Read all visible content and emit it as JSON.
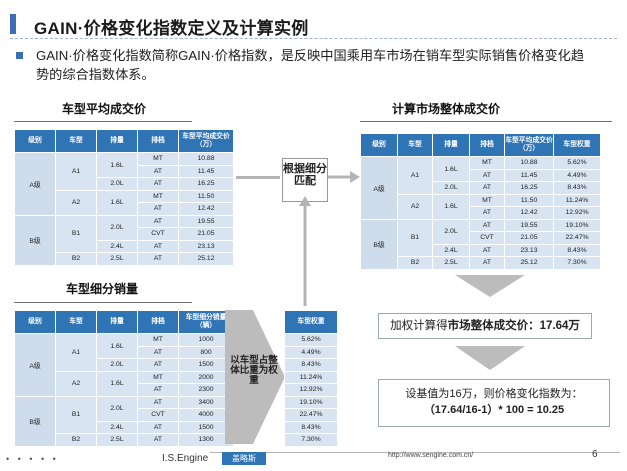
{
  "title": "GAIN·价格变化指数定义及计算实例",
  "intro": "GAIN·价格变化指数简称GAIN·价格指数，是反映中国乘用车市场在销车型实际销售价格变化趋势的综合指数体系。",
  "left_top": {
    "heading": "车型平均成交价",
    "headers": [
      "级别",
      "车型",
      "排量",
      "排档",
      "车型平均成交价（万）"
    ],
    "rows": [
      [
        "A级",
        "A1",
        "1.6L",
        "MT",
        "10.88"
      ],
      [
        "",
        "",
        "",
        "AT",
        "11.45"
      ],
      [
        "",
        "",
        "2.0L",
        "AT",
        "16.25"
      ],
      [
        "",
        "A2",
        "1.6L",
        "MT",
        "11.50"
      ],
      [
        "",
        "",
        "",
        "AT",
        "12.42"
      ],
      [
        "B级",
        "B1",
        "2.0L",
        "AT",
        "19.55"
      ],
      [
        "",
        "",
        "",
        "CVT",
        "21.05"
      ],
      [
        "",
        "",
        "2.4L",
        "AT",
        "23.13"
      ],
      [
        "",
        "B2",
        "2.5L",
        "AT",
        "25.12"
      ]
    ]
  },
  "left_bottom": {
    "heading": "车型细分销量",
    "headers": [
      "级别",
      "车型",
      "排量",
      "排档",
      "车型细分销量（辆）"
    ],
    "rows": [
      [
        "A级",
        "A1",
        "1.6L",
        "MT",
        "1000"
      ],
      [
        "",
        "",
        "",
        "AT",
        "800"
      ],
      [
        "",
        "",
        "2.0L",
        "AT",
        "1500"
      ],
      [
        "",
        "A2",
        "1.6L",
        "MT",
        "2000"
      ],
      [
        "",
        "",
        "",
        "AT",
        "2300"
      ],
      [
        "B级",
        "B1",
        "2.0L",
        "AT",
        "3400"
      ],
      [
        "",
        "",
        "",
        "CVT",
        "4000"
      ],
      [
        "",
        "",
        "2.4L",
        "AT",
        "1500"
      ],
      [
        "",
        "B2",
        "2.5L",
        "AT",
        "1300"
      ]
    ],
    "weight_header": "车型权重",
    "weights": [
      "5.62%",
      "4.49%",
      "8.43%",
      "11.24%",
      "12.92%",
      "19.10%",
      "22.47%",
      "8.43%",
      "7.30%"
    ]
  },
  "right_top": {
    "heading": "计算市场整体成交价",
    "headers": [
      "级别",
      "车型",
      "排量",
      "排档",
      "车型平均成交价（万）",
      "车型权重"
    ],
    "rows": [
      [
        "A级",
        "A1",
        "1.6L",
        "MT",
        "10.88",
        "5.62%"
      ],
      [
        "",
        "",
        "",
        "AT",
        "11.45",
        "4.49%"
      ],
      [
        "",
        "",
        "2.0L",
        "AT",
        "16.25",
        "8.43%"
      ],
      [
        "",
        "A2",
        "1.6L",
        "MT",
        "11.50",
        "11.24%"
      ],
      [
        "",
        "",
        "",
        "AT",
        "12.42",
        "12.92%"
      ],
      [
        "B级",
        "B1",
        "2.0L",
        "AT",
        "19.55",
        "19.10%"
      ],
      [
        "",
        "",
        "",
        "CVT",
        "21.05",
        "22.47%"
      ],
      [
        "",
        "",
        "2.4L",
        "AT",
        "23.13",
        "8.43%"
      ],
      [
        "",
        "B2",
        "2.5L",
        "AT",
        "25.12",
        "7.30%"
      ]
    ]
  },
  "match_label": "根据细分匹配",
  "weight_note": "以车型占整体比重为权重",
  "avg_price_prefix": "加权计算得",
  "avg_price_bold": "市场整体成交价",
  "avg_price_value": "：17.64万",
  "result_line1": "设基值为16万，则价格变化指数为：",
  "result_line2": "（17.64/16-1）* 100 = 10.25",
  "footer": {
    "dots": "• • • • •",
    "brand": "I.S.Engine",
    "badge": "盖略斯",
    "url": "http://www.sengine.com.cn/",
    "page": "6"
  }
}
